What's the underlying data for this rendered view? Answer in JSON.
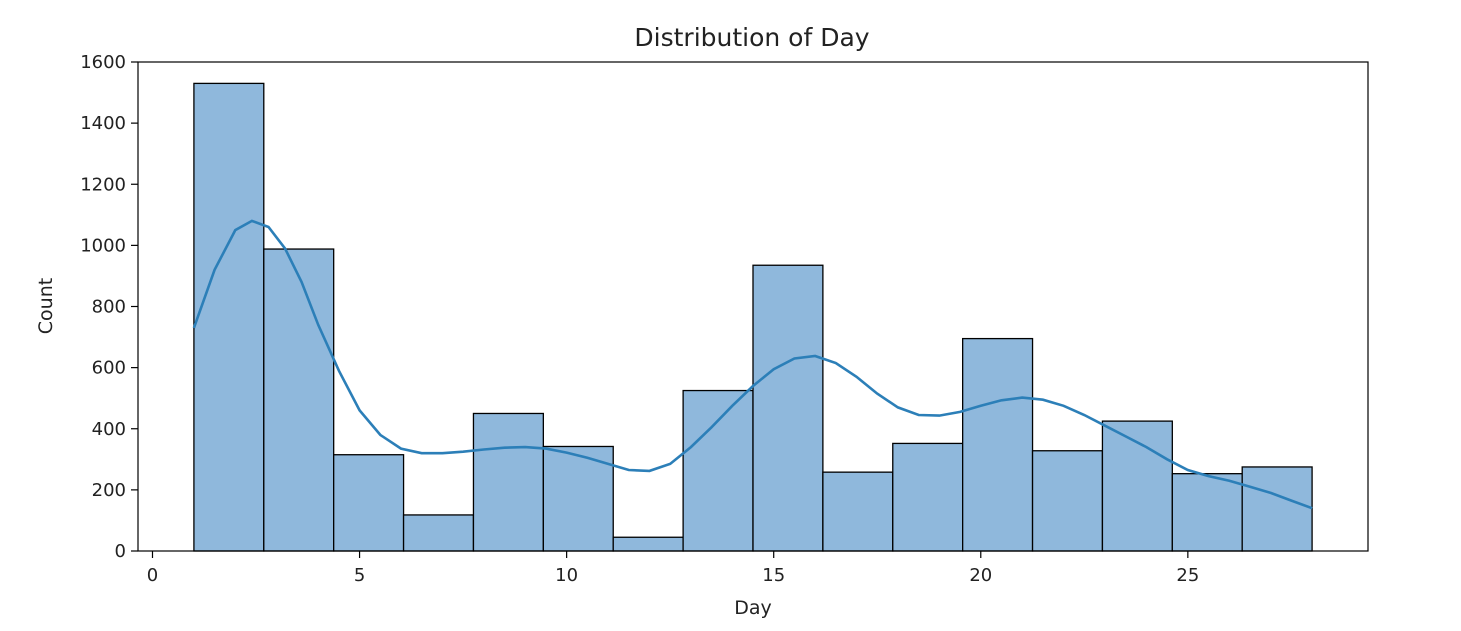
{
  "chart_data": {
    "type": "bar",
    "subtype": "histogram with density curve",
    "title": "Distribution of Day",
    "xlabel": "Day",
    "ylabel": "Count",
    "xlim": [
      -0.35,
      29.35
    ],
    "ylim": [
      0,
      1600
    ],
    "xticks": [
      0,
      5,
      10,
      15,
      20,
      25
    ],
    "yticks": [
      0,
      200,
      400,
      600,
      800,
      1000,
      1200,
      1400,
      1600
    ],
    "grid": false,
    "legend": "none",
    "bins": [
      {
        "start": 1.0,
        "end": 2.6875,
        "count": 1530
      },
      {
        "start": 2.6875,
        "end": 4.375,
        "count": 988
      },
      {
        "start": 4.375,
        "end": 6.0625,
        "count": 315
      },
      {
        "start": 6.0625,
        "end": 7.75,
        "count": 118
      },
      {
        "start": 7.75,
        "end": 9.4375,
        "count": 450
      },
      {
        "start": 9.4375,
        "end": 11.125,
        "count": 342
      },
      {
        "start": 11.125,
        "end": 12.8125,
        "count": 45
      },
      {
        "start": 12.8125,
        "end": 14.5,
        "count": 525
      },
      {
        "start": 14.5,
        "end": 16.1875,
        "count": 935
      },
      {
        "start": 16.1875,
        "end": 17.875,
        "count": 258
      },
      {
        "start": 17.875,
        "end": 19.5625,
        "count": 352
      },
      {
        "start": 19.5625,
        "end": 21.25,
        "count": 695
      },
      {
        "start": 21.25,
        "end": 22.9375,
        "count": 328
      },
      {
        "start": 22.9375,
        "end": 24.625,
        "count": 425
      },
      {
        "start": 24.625,
        "end": 26.3125,
        "count": 253
      },
      {
        "start": 26.3125,
        "end": 28.0,
        "count": 275
      }
    ],
    "density_curve": {
      "x": [
        1.0,
        1.5,
        2.0,
        2.4,
        2.8,
        3.2,
        3.6,
        4.0,
        4.5,
        5.0,
        5.5,
        6.0,
        6.5,
        7.0,
        7.5,
        8.0,
        8.5,
        9.0,
        9.5,
        10.0,
        10.5,
        11.0,
        11.5,
        12.0,
        12.5,
        13.0,
        13.5,
        14.0,
        14.5,
        15.0,
        15.5,
        16.0,
        16.5,
        17.0,
        17.5,
        18.0,
        18.5,
        19.0,
        19.5,
        20.0,
        20.5,
        21.0,
        21.5,
        22.0,
        22.5,
        23.0,
        23.5,
        24.0,
        24.5,
        25.0,
        25.5,
        26.0,
        26.5,
        27.0,
        27.5,
        28.0
      ],
      "y": [
        730,
        920,
        1050,
        1080,
        1060,
        990,
        880,
        740,
        590,
        460,
        380,
        335,
        320,
        320,
        325,
        332,
        338,
        340,
        335,
        322,
        305,
        285,
        265,
        262,
        285,
        340,
        405,
        475,
        540,
        595,
        630,
        638,
        615,
        570,
        515,
        470,
        445,
        443,
        455,
        475,
        493,
        502,
        495,
        475,
        445,
        410,
        375,
        340,
        300,
        265,
        245,
        230,
        210,
        190,
        165,
        140
      ]
    },
    "colors": {
      "bar_fill": "#8fb8dc",
      "bar_edge": "#000000",
      "curve": "#2c7fb8"
    }
  }
}
